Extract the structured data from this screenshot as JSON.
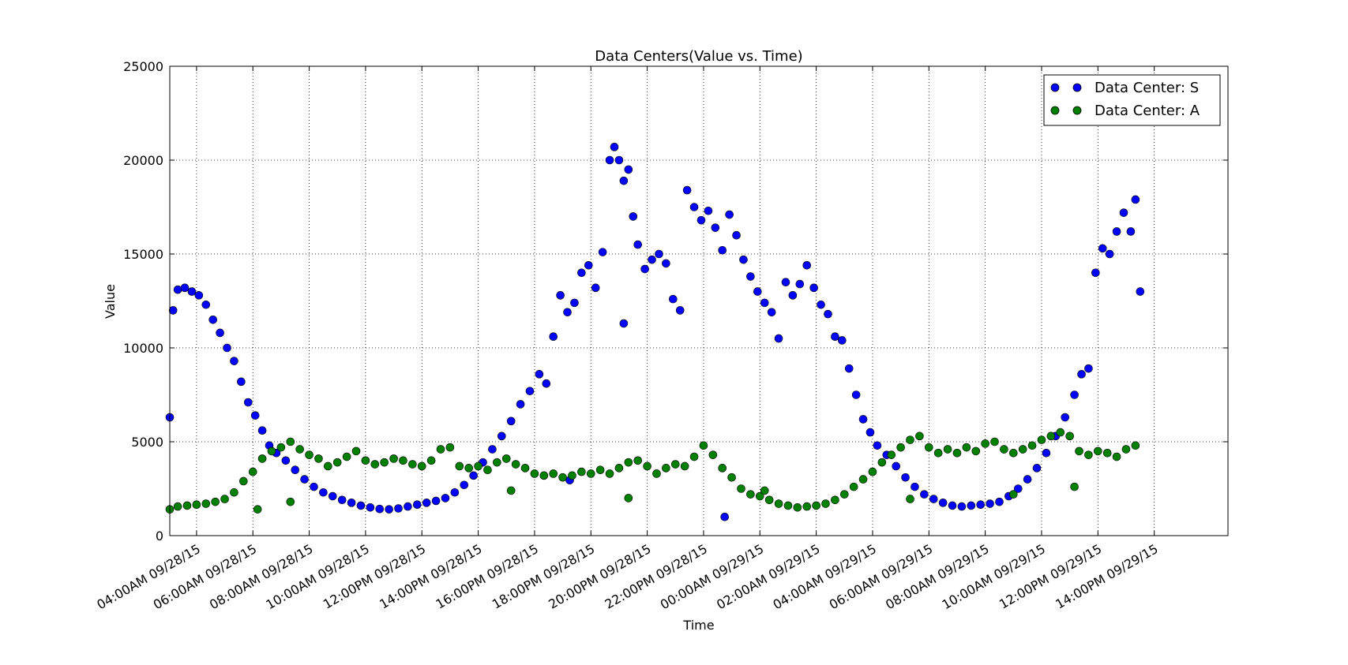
{
  "chart_data": {
    "type": "scatter",
    "title": "Data Centers(Value vs. Time)",
    "xlabel": "Time",
    "ylabel": "Value",
    "xlim": [
      "09/28/15 03:03",
      "09/29/15 16:37"
    ],
    "ylim": [
      0,
      25000
    ],
    "x_ticks": [
      "04:00AM 09/28/15",
      "06:00AM 09/28/15",
      "08:00AM 09/28/15",
      "10:00AM 09/28/15",
      "12:00PM 09/28/15",
      "14:00PM 09/28/15",
      "16:00PM 09/28/15",
      "18:00PM 09/28/15",
      "20:00PM 09/28/15",
      "22:00PM 09/28/15",
      "00:00AM 09/29/15",
      "02:00AM 09/29/15",
      "04:00AM 09/29/15",
      "06:00AM 09/29/15",
      "08:00AM 09/29/15",
      "10:00AM 09/29/15",
      "12:00PM 09/29/15",
      "14:00PM 09/29/15"
    ],
    "y_ticks": [
      "0",
      "5000",
      "10000",
      "15000",
      "20000",
      "25000"
    ],
    "grid": true,
    "legend_position": "top-right",
    "series": [
      {
        "name": "Data Center: S",
        "color": "#0000ff",
        "points": [
          [
            "09/28/15 03:03",
            6300
          ],
          [
            "09/28/15 03:10",
            12000
          ],
          [
            "09/28/15 03:20",
            13100
          ],
          [
            "09/28/15 03:35",
            13200
          ],
          [
            "09/28/15 03:50",
            13000
          ],
          [
            "09/28/15 04:05",
            12800
          ],
          [
            "09/28/15 04:20",
            12300
          ],
          [
            "09/28/15 04:35",
            11500
          ],
          [
            "09/28/15 04:50",
            10800
          ],
          [
            "09/28/15 05:05",
            10000
          ],
          [
            "09/28/15 05:20",
            9300
          ],
          [
            "09/28/15 05:35",
            8200
          ],
          [
            "09/28/15 05:50",
            7100
          ],
          [
            "09/28/15 06:05",
            6400
          ],
          [
            "09/28/15 06:20",
            5600
          ],
          [
            "09/28/15 06:35",
            4800
          ],
          [
            "09/28/15 06:50",
            4400
          ],
          [
            "09/28/15 07:10",
            4000
          ],
          [
            "09/28/15 07:30",
            3500
          ],
          [
            "09/28/15 07:50",
            3000
          ],
          [
            "09/28/15 08:10",
            2600
          ],
          [
            "09/28/15 08:30",
            2300
          ],
          [
            "09/28/15 08:50",
            2100
          ],
          [
            "09/28/15 09:10",
            1900
          ],
          [
            "09/28/15 09:30",
            1750
          ],
          [
            "09/28/15 09:50",
            1600
          ],
          [
            "09/28/15 10:10",
            1500
          ],
          [
            "09/28/15 10:30",
            1420
          ],
          [
            "09/28/15 10:50",
            1400
          ],
          [
            "09/28/15 11:10",
            1450
          ],
          [
            "09/28/15 11:30",
            1550
          ],
          [
            "09/28/15 11:50",
            1650
          ],
          [
            "09/28/15 12:10",
            1750
          ],
          [
            "09/28/15 12:30",
            1850
          ],
          [
            "09/28/15 12:50",
            2000
          ],
          [
            "09/28/15 13:10",
            2300
          ],
          [
            "09/28/15 13:30",
            2700
          ],
          [
            "09/28/15 13:50",
            3200
          ],
          [
            "09/28/15 14:10",
            3900
          ],
          [
            "09/28/15 14:30",
            4600
          ],
          [
            "09/28/15 14:50",
            5300
          ],
          [
            "09/28/15 15:10",
            6100
          ],
          [
            "09/28/15 15:30",
            7000
          ],
          [
            "09/28/15 15:50",
            7700
          ],
          [
            "09/28/15 16:10",
            8600
          ],
          [
            "09/28/15 16:25",
            8100
          ],
          [
            "09/28/15 16:40",
            10600
          ],
          [
            "09/28/15 16:55",
            12800
          ],
          [
            "09/28/15 17:10",
            11900
          ],
          [
            "09/28/15 17:25",
            12400
          ],
          [
            "09/28/15 17:40",
            14000
          ],
          [
            "09/28/15 17:55",
            14400
          ],
          [
            "09/28/15 18:10",
            13200
          ],
          [
            "09/28/15 18:25",
            15100
          ],
          [
            "09/28/15 18:40",
            20000
          ],
          [
            "09/28/15 18:50",
            20700
          ],
          [
            "09/28/15 19:00",
            20000
          ],
          [
            "09/28/15 19:10",
            18900
          ],
          [
            "09/28/15 19:20",
            19500
          ],
          [
            "09/28/15 19:30",
            17000
          ],
          [
            "09/28/15 19:40",
            15500
          ],
          [
            "09/28/15 19:55",
            14200
          ],
          [
            "09/28/15 20:10",
            14700
          ],
          [
            "09/28/15 20:25",
            15000
          ],
          [
            "09/28/15 20:40",
            14500
          ],
          [
            "09/28/15 20:55",
            12600
          ],
          [
            "09/28/15 21:10",
            12000
          ],
          [
            "09/28/15 21:25",
            18400
          ],
          [
            "09/28/15 21:40",
            17500
          ],
          [
            "09/28/15 21:55",
            16800
          ],
          [
            "09/28/15 22:10",
            17300
          ],
          [
            "09/28/15 22:25",
            16400
          ],
          [
            "09/28/15 22:40",
            15200
          ],
          [
            "09/28/15 22:55",
            17100
          ],
          [
            "09/28/15 23:10",
            16000
          ],
          [
            "09/28/15 23:25",
            14700
          ],
          [
            "09/28/15 23:40",
            13800
          ],
          [
            "09/28/15 23:55",
            13000
          ],
          [
            "09/29/15 00:10",
            12400
          ],
          [
            "09/29/15 00:25",
            11900
          ],
          [
            "09/29/15 00:40",
            10500
          ],
          [
            "09/29/15 00:55",
            13500
          ],
          [
            "09/29/15 01:10",
            12800
          ],
          [
            "09/29/15 01:25",
            13400
          ],
          [
            "09/29/15 01:40",
            14400
          ],
          [
            "09/29/15 01:55",
            13200
          ],
          [
            "09/29/15 02:10",
            12300
          ],
          [
            "09/29/15 02:25",
            11800
          ],
          [
            "09/29/15 02:40",
            10600
          ],
          [
            "09/29/15 02:55",
            10400
          ],
          [
            "09/29/15 03:10",
            8900
          ],
          [
            "09/29/15 03:25",
            7500
          ],
          [
            "09/29/15 03:40",
            6200
          ],
          [
            "09/29/15 03:55",
            5500
          ],
          [
            "09/29/15 04:10",
            4800
          ],
          [
            "09/29/15 04:30",
            4300
          ],
          [
            "09/29/15 04:50",
            3700
          ],
          [
            "09/29/15 05:10",
            3100
          ],
          [
            "09/29/15 05:30",
            2600
          ],
          [
            "09/29/15 05:50",
            2200
          ],
          [
            "09/29/15 06:10",
            1950
          ],
          [
            "09/29/15 06:30",
            1750
          ],
          [
            "09/29/15 06:50",
            1600
          ],
          [
            "09/29/15 07:10",
            1550
          ],
          [
            "09/29/15 07:30",
            1600
          ],
          [
            "09/29/15 07:50",
            1650
          ],
          [
            "09/29/15 08:10",
            1700
          ],
          [
            "09/29/15 08:30",
            1800
          ],
          [
            "09/29/15 08:50",
            2100
          ],
          [
            "09/29/15 09:10",
            2500
          ],
          [
            "09/29/15 09:30",
            3000
          ],
          [
            "09/29/15 09:50",
            3600
          ],
          [
            "09/29/15 10:10",
            4400
          ],
          [
            "09/29/15 10:30",
            5300
          ],
          [
            "09/29/15 10:50",
            6300
          ],
          [
            "09/29/15 11:10",
            7500
          ],
          [
            "09/29/15 11:25",
            8600
          ],
          [
            "09/29/15 11:40",
            8900
          ],
          [
            "09/29/15 11:55",
            14000
          ],
          [
            "09/29/15 12:10",
            15300
          ],
          [
            "09/29/15 12:25",
            15000
          ],
          [
            "09/29/15 12:40",
            16200
          ],
          [
            "09/29/15 12:55",
            17200
          ],
          [
            "09/29/15 13:10",
            16200
          ],
          [
            "09/29/15 13:20",
            17900
          ],
          [
            "09/29/15 13:30",
            13000
          ],
          [
            "09/28/15 19:10",
            11300
          ],
          [
            "09/28/15 17:15",
            2950
          ],
          [
            "09/28/15 22:45",
            1000
          ]
        ]
      },
      {
        "name": "Data Center: A",
        "color": "#008000",
        "points": [
          [
            "09/28/15 03:03",
            1400
          ],
          [
            "09/28/15 03:20",
            1550
          ],
          [
            "09/28/15 03:40",
            1600
          ],
          [
            "09/28/15 04:00",
            1650
          ],
          [
            "09/28/15 04:20",
            1700
          ],
          [
            "09/28/15 04:40",
            1800
          ],
          [
            "09/28/15 05:00",
            1950
          ],
          [
            "09/28/15 05:20",
            2300
          ],
          [
            "09/28/15 05:40",
            2900
          ],
          [
            "09/28/15 06:00",
            3400
          ],
          [
            "09/28/15 06:20",
            4100
          ],
          [
            "09/28/15 06:40",
            4500
          ],
          [
            "09/28/15 07:00",
            4700
          ],
          [
            "09/28/15 07:20",
            5000
          ],
          [
            "09/28/15 07:40",
            4600
          ],
          [
            "09/28/15 08:00",
            4300
          ],
          [
            "09/28/15 08:20",
            4100
          ],
          [
            "09/28/15 08:40",
            3700
          ],
          [
            "09/28/15 09:00",
            3900
          ],
          [
            "09/28/15 09:20",
            4200
          ],
          [
            "09/28/15 09:40",
            4500
          ],
          [
            "09/28/15 10:00",
            4000
          ],
          [
            "09/28/15 10:20",
            3800
          ],
          [
            "09/28/15 10:40",
            3900
          ],
          [
            "09/28/15 11:00",
            4100
          ],
          [
            "09/28/15 11:20",
            4000
          ],
          [
            "09/28/15 11:40",
            3800
          ],
          [
            "09/28/15 12:00",
            3700
          ],
          [
            "09/28/15 12:20",
            4000
          ],
          [
            "09/28/15 12:40",
            4600
          ],
          [
            "09/28/15 13:00",
            4700
          ],
          [
            "09/28/15 13:20",
            3700
          ],
          [
            "09/28/15 13:40",
            3600
          ],
          [
            "09/28/15 14:00",
            3700
          ],
          [
            "09/28/15 14:20",
            3500
          ],
          [
            "09/28/15 14:40",
            3900
          ],
          [
            "09/28/15 15:00",
            4100
          ],
          [
            "09/28/15 15:20",
            3800
          ],
          [
            "09/28/15 15:40",
            3600
          ],
          [
            "09/28/15 16:00",
            3300
          ],
          [
            "09/28/15 16:20",
            3200
          ],
          [
            "09/28/15 16:40",
            3300
          ],
          [
            "09/28/15 17:00",
            3100
          ],
          [
            "09/28/15 17:20",
            3200
          ],
          [
            "09/28/15 17:40",
            3400
          ],
          [
            "09/28/15 18:00",
            3300
          ],
          [
            "09/28/15 18:20",
            3500
          ],
          [
            "09/28/15 18:40",
            3300
          ],
          [
            "09/28/15 19:00",
            3600
          ],
          [
            "09/28/15 19:20",
            3900
          ],
          [
            "09/28/15 19:40",
            4000
          ],
          [
            "09/28/15 20:00",
            3700
          ],
          [
            "09/28/15 20:20",
            3300
          ],
          [
            "09/28/15 20:40",
            3600
          ],
          [
            "09/28/15 21:00",
            3800
          ],
          [
            "09/28/15 21:20",
            3700
          ],
          [
            "09/28/15 21:40",
            4200
          ],
          [
            "09/28/15 22:00",
            4800
          ],
          [
            "09/28/15 22:20",
            4300
          ],
          [
            "09/28/15 22:40",
            3600
          ],
          [
            "09/28/15 23:00",
            3100
          ],
          [
            "09/28/15 23:20",
            2500
          ],
          [
            "09/28/15 23:40",
            2200
          ],
          [
            "09/29/15 00:00",
            2100
          ],
          [
            "09/29/15 00:20",
            1900
          ],
          [
            "09/29/15 00:40",
            1700
          ],
          [
            "09/29/15 01:00",
            1600
          ],
          [
            "09/29/15 01:20",
            1500
          ],
          [
            "09/29/15 01:40",
            1550
          ],
          [
            "09/29/15 02:00",
            1600
          ],
          [
            "09/29/15 02:20",
            1700
          ],
          [
            "09/29/15 02:40",
            1900
          ],
          [
            "09/29/15 03:00",
            2200
          ],
          [
            "09/29/15 03:20",
            2600
          ],
          [
            "09/29/15 03:40",
            3000
          ],
          [
            "09/29/15 04:00",
            3400
          ],
          [
            "09/29/15 04:20",
            3900
          ],
          [
            "09/29/15 04:40",
            4300
          ],
          [
            "09/29/15 05:00",
            4700
          ],
          [
            "09/29/15 05:20",
            5100
          ],
          [
            "09/29/15 05:40",
            5300
          ],
          [
            "09/29/15 06:00",
            4700
          ],
          [
            "09/29/15 06:20",
            4400
          ],
          [
            "09/29/15 06:40",
            4600
          ],
          [
            "09/29/15 07:00",
            4400
          ],
          [
            "09/29/15 07:20",
            4700
          ],
          [
            "09/29/15 07:40",
            4500
          ],
          [
            "09/29/15 08:00",
            4900
          ],
          [
            "09/29/15 08:20",
            5000
          ],
          [
            "09/29/15 08:40",
            4600
          ],
          [
            "09/29/15 09:00",
            4400
          ],
          [
            "09/29/15 09:20",
            4600
          ],
          [
            "09/29/15 09:40",
            4800
          ],
          [
            "09/29/15 10:00",
            5100
          ],
          [
            "09/29/15 10:20",
            5300
          ],
          [
            "09/29/15 10:40",
            5500
          ],
          [
            "09/29/15 11:00",
            5300
          ],
          [
            "09/29/15 11:20",
            4500
          ],
          [
            "09/29/15 11:40",
            4300
          ],
          [
            "09/29/15 12:00",
            4500
          ],
          [
            "09/29/15 12:20",
            4400
          ],
          [
            "09/29/15 12:40",
            4200
          ],
          [
            "09/29/15 13:00",
            4600
          ],
          [
            "09/29/15 13:20",
            4800
          ],
          [
            "09/29/15 05:20",
            1950
          ],
          [
            "09/29/15 00:10",
            2400
          ],
          [
            "09/29/15 11:10",
            2600
          ],
          [
            "09/28/15 07:20",
            1800
          ],
          [
            "09/28/15 06:10",
            1400
          ],
          [
            "09/28/15 15:10",
            2400
          ],
          [
            "09/28/15 19:20",
            2000
          ],
          [
            "09/29/15 09:00",
            2200
          ]
        ]
      }
    ]
  }
}
